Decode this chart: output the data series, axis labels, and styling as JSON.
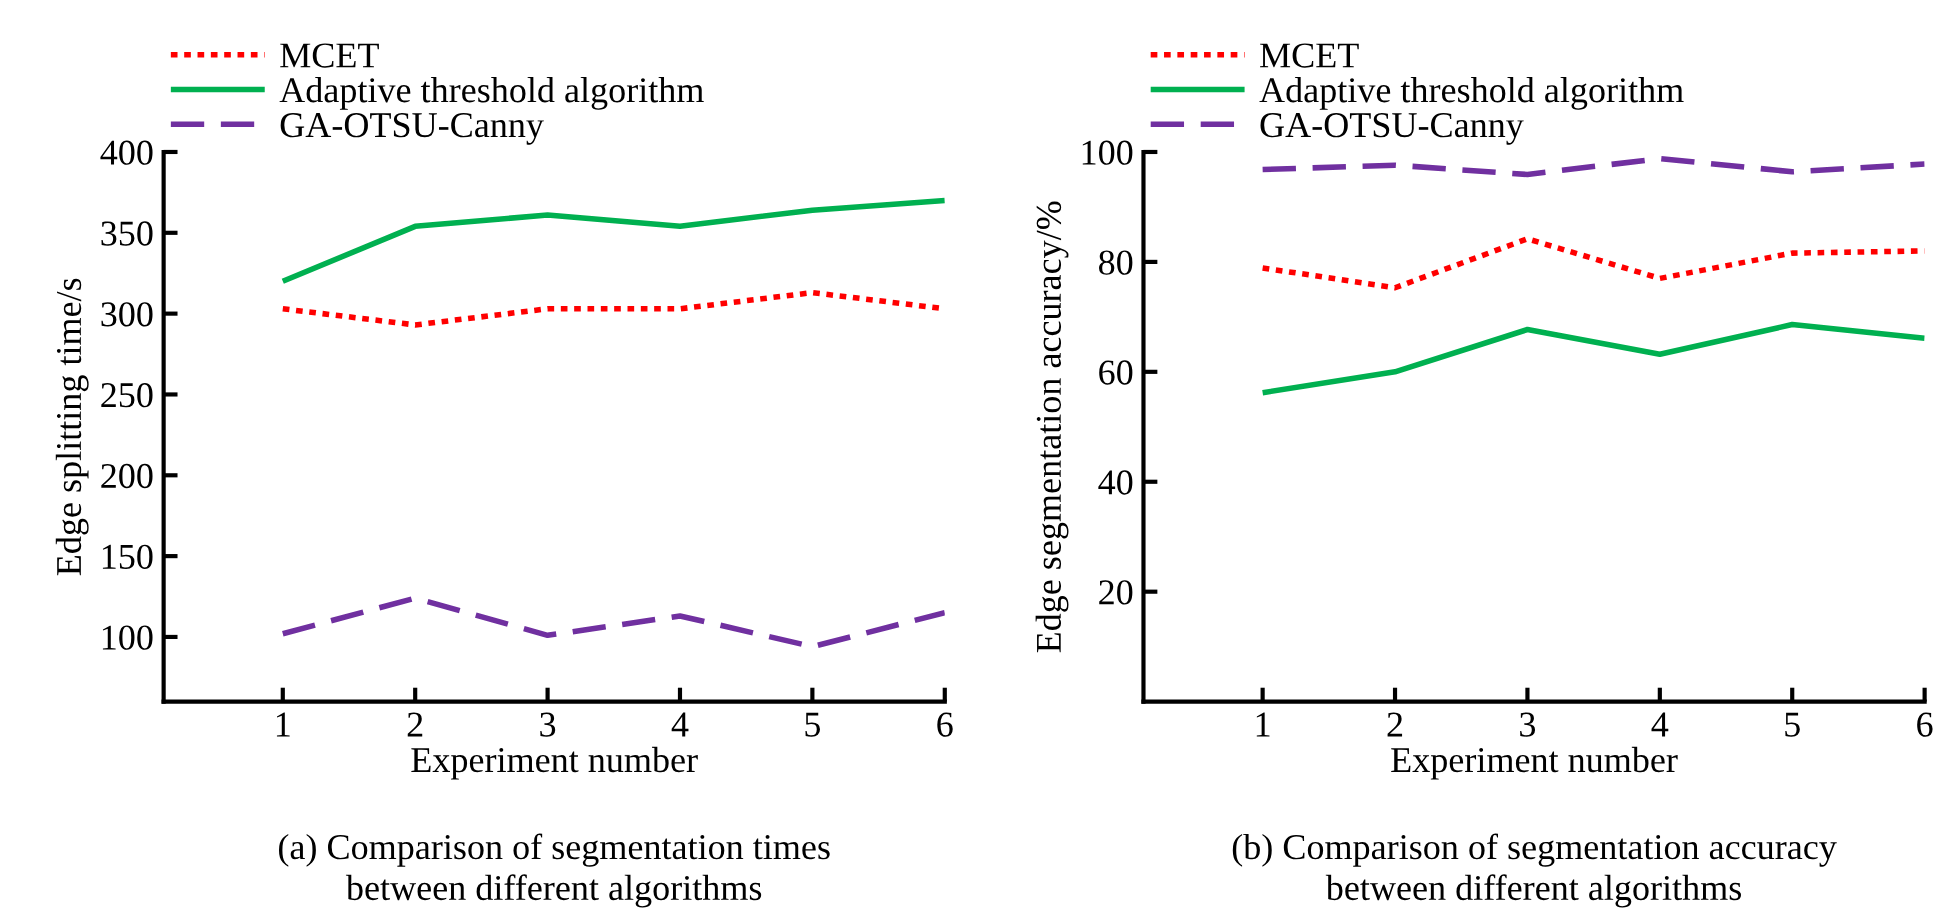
{
  "chart_data": [
    {
      "type": "line",
      "xlabel": "Experiment number",
      "ylabel": "Edge splitting time/s",
      "x": [
        1,
        2,
        3,
        4,
        5,
        6
      ],
      "xlim": [
        0.1,
        6
      ],
      "xticks": [
        1,
        2,
        3,
        4,
        5,
        6
      ],
      "ylim": [
        60,
        400
      ],
      "yticks": [
        100,
        150,
        200,
        250,
        300,
        350,
        400
      ],
      "series": [
        {
          "name": "MCET",
          "color": "#ff0000",
          "line_style": "dotted",
          "values": [
            303,
            293,
            303,
            303,
            313,
            303
          ]
        },
        {
          "name": "Adaptive threshold algorithm",
          "color": "#00b050",
          "line_style": "solid",
          "values": [
            320,
            354,
            361,
            354,
            364,
            370
          ]
        },
        {
          "name": "GA-OTSU-Canny",
          "color": "#7030a0",
          "line_style": "dashed",
          "values": [
            102,
            124,
            101,
            113,
            94,
            115
          ]
        }
      ],
      "legend": "top left",
      "grid": false,
      "annotations": [
        "(a) Comparison of segmentation times\nbetween different algorithms"
      ]
    },
    {
      "type": "line",
      "xlabel": "Experiment number",
      "ylabel": "Edge segmentation accuracy/%",
      "x": [
        1,
        2,
        3,
        4,
        5,
        6
      ],
      "xlim": [
        0.1,
        6
      ],
      "xticks": [
        1,
        2,
        3,
        4,
        5,
        6
      ],
      "ylim": [
        0,
        100
      ],
      "yticks": [
        20,
        40,
        60,
        80,
        100
      ],
      "series": [
        {
          "name": "MCET",
          "color": "#ff0000",
          "line_style": "dotted",
          "values": [
            78.9,
            75.3,
            84.2,
            77.0,
            81.6,
            82.0
          ]
        },
        {
          "name": "Adaptive threshold algorithm",
          "color": "#00b050",
          "line_style": "solid",
          "values": [
            56.2,
            60.0,
            67.7,
            63.2,
            68.6,
            66.1
          ]
        },
        {
          "name": "GA-OTSU-Canny",
          "color": "#7030a0",
          "line_style": "dashed",
          "values": [
            96.8,
            97.6,
            95.9,
            98.8,
            96.4,
            97.8
          ]
        }
      ],
      "legend": "top left",
      "grid": false,
      "annotations": [
        "(b) Comparison of segmentation accuracy\nbetween different algorithms"
      ]
    }
  ]
}
